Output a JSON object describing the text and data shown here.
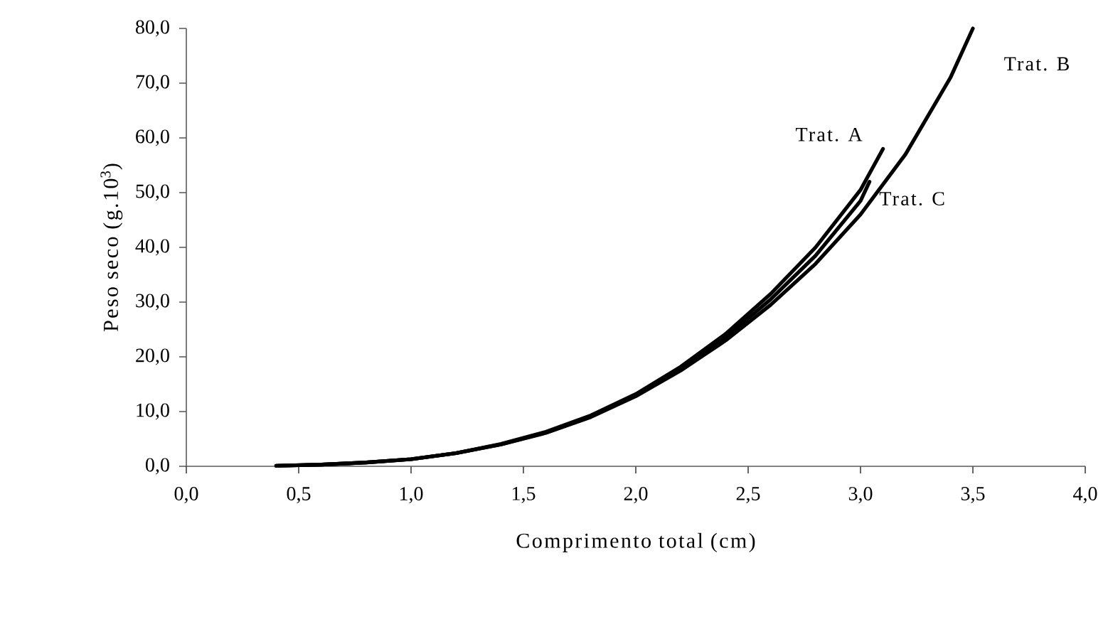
{
  "chart_data": {
    "type": "line",
    "xlabel": "Comprimento total (cm)",
    "ylabel": "Peso seco (g.10$^{3}$)",
    "xlim": [
      0,
      4
    ],
    "ylim": [
      0,
      80
    ],
    "xticks": [
      {
        "value": 0,
        "label": "0,0"
      },
      {
        "value": 0.5,
        "label": "0,5"
      },
      {
        "value": 1,
        "label": "1,0"
      },
      {
        "value": 1.5,
        "label": "1,5"
      },
      {
        "value": 2,
        "label": "2,0"
      },
      {
        "value": 2.5,
        "label": "2,5"
      },
      {
        "value": 3,
        "label": "3,0"
      },
      {
        "value": 3.5,
        "label": "3,5"
      },
      {
        "value": 4,
        "label": "4,0"
      }
    ],
    "yticks": [
      {
        "value": 0,
        "label": "0,0"
      },
      {
        "value": 10,
        "label": "10,0"
      },
      {
        "value": 20,
        "label": "20,0"
      },
      {
        "value": 30,
        "label": "30,0"
      },
      {
        "value": 40,
        "label": "40,0"
      },
      {
        "value": 50,
        "label": "50,0"
      },
      {
        "value": 60,
        "label": "60,0"
      },
      {
        "value": 70,
        "label": "70,0"
      },
      {
        "value": 80,
        "label": "80,0"
      }
    ],
    "grid": false,
    "legend": false,
    "marker": "none",
    "line_style": "solid",
    "series": [
      {
        "name": "Trat. A",
        "color": "#000000",
        "x": [
          0.4,
          0.6,
          0.8,
          1.0,
          1.2,
          1.4,
          1.6,
          1.8,
          2.0,
          2.2,
          2.4,
          2.6,
          2.8,
          3.0,
          3.1
        ],
        "values": [
          0.1,
          0.3,
          0.7,
          1.3,
          2.4,
          4.1,
          6.3,
          9.3,
          13.2,
          18.2,
          24.2,
          31.5,
          40,
          50.5,
          58
        ]
      },
      {
        "name": "Trat. B",
        "color": "#000000",
        "x": [
          0.4,
          0.6,
          0.8,
          1.0,
          1.2,
          1.4,
          1.6,
          1.8,
          2.0,
          2.2,
          2.4,
          2.6,
          2.8,
          3.0,
          3.2,
          3.4,
          3.5
        ],
        "values": [
          0.1,
          0.3,
          0.7,
          1.3,
          2.4,
          4.0,
          6.1,
          9.0,
          12.8,
          17.5,
          23,
          29.5,
          37,
          46,
          57,
          71,
          80
        ]
      },
      {
        "name": "Trat. C",
        "color": "#000000",
        "x": [
          0.4,
          0.6,
          0.8,
          1.0,
          1.2,
          1.4,
          1.6,
          1.8,
          2.0,
          2.2,
          2.4,
          2.6,
          2.8,
          3.0,
          3.04
        ],
        "values": [
          0.1,
          0.3,
          0.7,
          1.3,
          2.4,
          4.0,
          6.2,
          9.1,
          13.0,
          17.8,
          23.6,
          30.5,
          38.5,
          48.5,
          52
        ]
      }
    ]
  }
}
